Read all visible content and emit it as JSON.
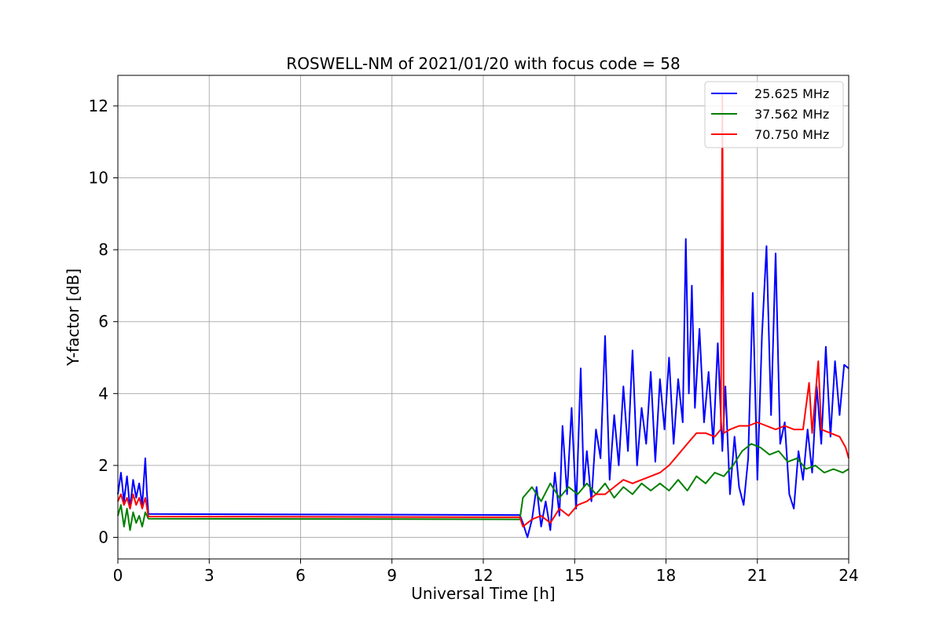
{
  "chart_data": {
    "type": "line",
    "title": "ROSWELL-NM of 2021/01/20 with focus code = 58",
    "xlabel": "Universal Time [h]",
    "ylabel": "Y-factor [dB]",
    "xlim": [
      0,
      24
    ],
    "ylim": [
      -0.6,
      12.85
    ],
    "xticks": [
      0,
      3,
      6,
      9,
      12,
      15,
      18,
      21,
      24
    ],
    "yticks": [
      0,
      2,
      4,
      6,
      8,
      10,
      12
    ],
    "grid": true,
    "legend_position": "top-right",
    "series": [
      {
        "name": "25.625 MHz",
        "color": "#0000ff",
        "x": [
          0,
          0.1,
          0.2,
          0.3,
          0.4,
          0.5,
          0.6,
          0.7,
          0.8,
          0.9,
          0.95,
          1.0,
          13.2,
          13.3,
          13.45,
          13.6,
          13.75,
          13.9,
          14.05,
          14.2,
          14.35,
          14.5,
          14.6,
          14.75,
          14.9,
          15.05,
          15.2,
          15.3,
          15.4,
          15.55,
          15.7,
          15.85,
          16.0,
          16.15,
          16.3,
          16.45,
          16.6,
          16.75,
          16.9,
          17.05,
          17.2,
          17.35,
          17.5,
          17.65,
          17.8,
          17.95,
          18.1,
          18.25,
          18.4,
          18.55,
          18.65,
          18.75,
          18.85,
          18.95,
          19.1,
          19.25,
          19.4,
          19.55,
          19.7,
          19.85,
          19.95,
          20.1,
          20.25,
          20.4,
          20.55,
          20.7,
          20.85,
          21.0,
          21.15,
          21.3,
          21.45,
          21.6,
          21.75,
          21.9,
          22.05,
          22.2,
          22.35,
          22.5,
          22.65,
          22.8,
          22.95,
          23.1,
          23.25,
          23.4,
          23.55,
          23.7,
          23.85,
          24.0
        ],
        "y": [
          1.2,
          1.8,
          1.0,
          1.7,
          0.8,
          1.6,
          1.1,
          1.5,
          0.9,
          2.2,
          1.3,
          0.65,
          0.62,
          0.4,
          0.0,
          0.5,
          1.4,
          0.3,
          1.0,
          0.2,
          1.8,
          0.6,
          3.1,
          1.2,
          3.6,
          0.8,
          4.7,
          1.4,
          2.4,
          1.0,
          3.0,
          2.2,
          5.6,
          1.6,
          3.4,
          2.0,
          4.2,
          2.4,
          5.2,
          2.0,
          3.6,
          2.6,
          4.6,
          2.1,
          4.4,
          3.0,
          5.0,
          2.6,
          4.4,
          3.2,
          8.3,
          4.0,
          7.0,
          3.6,
          5.8,
          3.2,
          4.6,
          2.6,
          5.4,
          2.4,
          4.2,
          1.2,
          2.8,
          1.4,
          0.9,
          2.2,
          6.8,
          1.6,
          5.6,
          8.1,
          3.4,
          7.9,
          2.6,
          3.2,
          1.2,
          0.8,
          2.4,
          1.6,
          3.0,
          1.8,
          4.2,
          2.6,
          5.3,
          2.8,
          4.9,
          3.4,
          4.8,
          4.7
        ]
      },
      {
        "name": "37.562 MHz",
        "color": "#008000",
        "x": [
          0,
          0.1,
          0.2,
          0.3,
          0.4,
          0.5,
          0.6,
          0.7,
          0.8,
          0.9,
          1.0,
          13.2,
          13.3,
          13.6,
          13.9,
          14.2,
          14.5,
          14.8,
          15.1,
          15.4,
          15.7,
          16.0,
          16.3,
          16.6,
          16.9,
          17.2,
          17.5,
          17.8,
          18.1,
          18.4,
          18.7,
          19.0,
          19.3,
          19.6,
          19.9,
          20.2,
          20.5,
          20.8,
          21.1,
          21.4,
          21.7,
          22.0,
          22.3,
          22.6,
          22.9,
          23.2,
          23.5,
          23.8,
          24.0
        ],
        "y": [
          0.6,
          0.9,
          0.3,
          0.8,
          0.2,
          0.7,
          0.4,
          0.6,
          0.3,
          0.7,
          0.52,
          0.5,
          1.1,
          1.4,
          1.0,
          1.5,
          1.1,
          1.4,
          1.2,
          1.5,
          1.2,
          1.5,
          1.1,
          1.4,
          1.2,
          1.5,
          1.3,
          1.5,
          1.3,
          1.6,
          1.3,
          1.7,
          1.5,
          1.8,
          1.7,
          2.0,
          2.4,
          2.6,
          2.5,
          2.3,
          2.4,
          2.1,
          2.2,
          1.9,
          2.0,
          1.8,
          1.9,
          1.8,
          1.9
        ]
      },
      {
        "name": "70.750 MHz",
        "color": "#ff0000",
        "x": [
          0,
          0.1,
          0.2,
          0.3,
          0.4,
          0.5,
          0.6,
          0.7,
          0.8,
          0.9,
          1.0,
          13.2,
          13.3,
          13.6,
          13.9,
          14.2,
          14.5,
          14.8,
          15.1,
          15.4,
          15.7,
          16.0,
          16.3,
          16.6,
          16.9,
          17.2,
          17.5,
          17.8,
          18.1,
          18.4,
          18.7,
          19.0,
          19.3,
          19.6,
          19.8,
          19.85,
          19.9,
          20.1,
          20.4,
          20.7,
          21.0,
          21.3,
          21.6,
          21.9,
          22.2,
          22.5,
          22.7,
          22.8,
          23.0,
          23.1,
          23.4,
          23.7,
          23.9,
          24.0
        ],
        "y": [
          1.0,
          1.2,
          0.9,
          1.1,
          0.8,
          1.2,
          0.9,
          1.1,
          0.8,
          1.1,
          0.58,
          0.56,
          0.3,
          0.5,
          0.6,
          0.4,
          0.8,
          0.6,
          0.9,
          1.0,
          1.2,
          1.2,
          1.4,
          1.6,
          1.5,
          1.6,
          1.7,
          1.8,
          2.0,
          2.3,
          2.6,
          2.9,
          2.9,
          2.8,
          3.0,
          12.3,
          2.9,
          3.0,
          3.1,
          3.1,
          3.2,
          3.1,
          3.0,
          3.1,
          3.0,
          3.0,
          4.3,
          2.9,
          4.9,
          3.0,
          2.9,
          2.8,
          2.5,
          2.2
        ]
      }
    ]
  }
}
